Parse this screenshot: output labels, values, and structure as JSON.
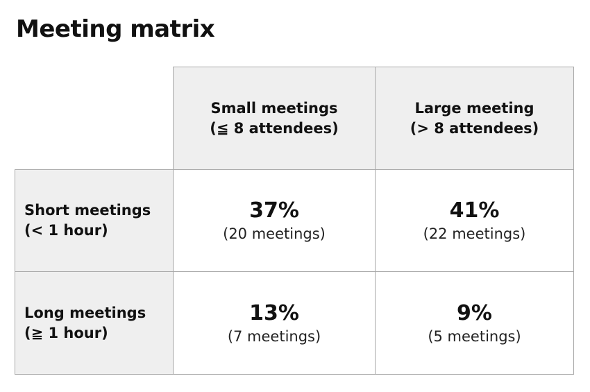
{
  "title": "Meeting matrix",
  "chart_data": {
    "type": "table",
    "title": "Meeting matrix",
    "columns": [
      {
        "line1": "Small meetings",
        "line2": "(≦ 8 attendees)"
      },
      {
        "line1": "Large meeting",
        "line2": "(> 8 attendees)"
      }
    ],
    "rows": [
      {
        "line1": "Short meetings",
        "line2": "(< 1 hour)"
      },
      {
        "line1": "Long meetings",
        "line2": "(≧ 1 hour)"
      }
    ],
    "cells": [
      [
        {
          "percent": "37%",
          "count": "(20 meetings)"
        },
        {
          "percent": "41%",
          "count": "(22 meetings)"
        }
      ],
      [
        {
          "percent": "13%",
          "count": "(7 meetings)"
        },
        {
          "percent": "9%",
          "count": "(5 meetings)"
        }
      ]
    ],
    "values": [
      [
        37,
        41
      ],
      [
        13,
        9
      ]
    ],
    "meeting_counts": [
      [
        20,
        22
      ],
      [
        7,
        5
      ]
    ]
  }
}
